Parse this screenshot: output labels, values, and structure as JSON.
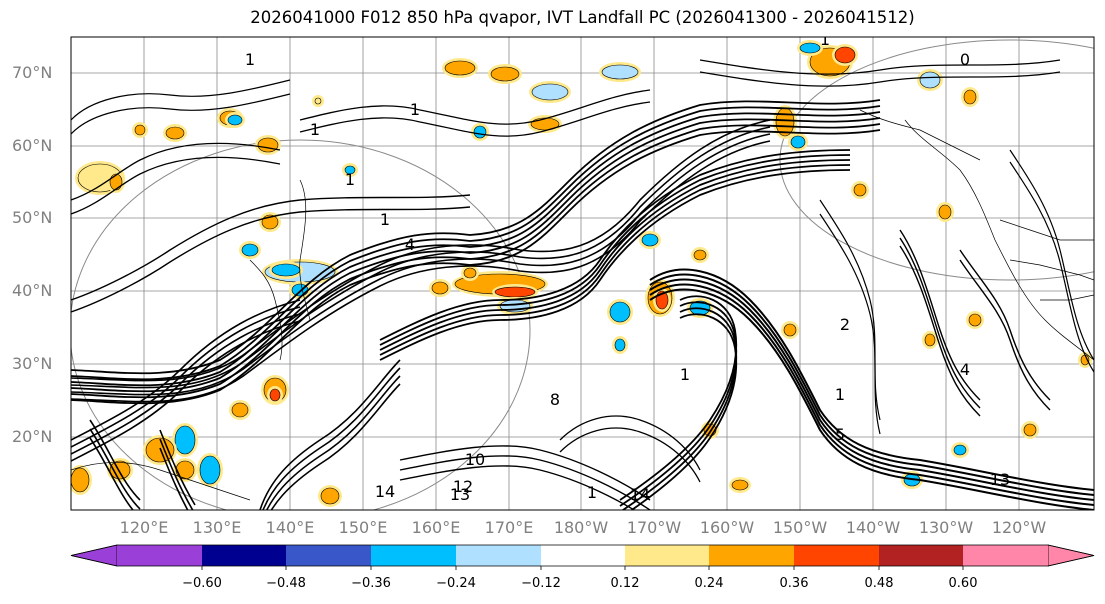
{
  "title": "2026041000 F012 850 hPa qvapor, IVT Landfall PC (2026041300 - 2026041512)",
  "lat_labels": [
    "70°N",
    "60°N",
    "50°N",
    "40°N",
    "30°N",
    "20°N"
  ],
  "lon_labels": [
    "120°E",
    "130°E",
    "140°E",
    "150°E",
    "160°E",
    "170°E",
    "180°W",
    "170°W",
    "160°W",
    "150°W",
    "140°W",
    "130°W",
    "120°W"
  ],
  "colorbar": {
    "colors": [
      "#9b3fd9",
      "#000090",
      "#3a57c9",
      "#00bfff",
      "#b0e0ff",
      "#ffffff",
      "#ffe98a",
      "#ffa500",
      "#ff4500",
      "#b22222",
      "#ff85a9"
    ],
    "ticks": [
      "−0.60",
      "−0.48",
      "−0.36",
      "−0.24",
      "−0.12",
      "0.12",
      "0.24",
      "0.36",
      "0.48",
      "0.60"
    ]
  },
  "contour_labels": [
    "1",
    "1",
    "1",
    "1",
    "1",
    "1",
    "0",
    "1",
    "2",
    "4",
    "1",
    "13",
    "14",
    "12",
    "10",
    "14",
    "13",
    "1",
    "4",
    "8",
    "5"
  ]
}
